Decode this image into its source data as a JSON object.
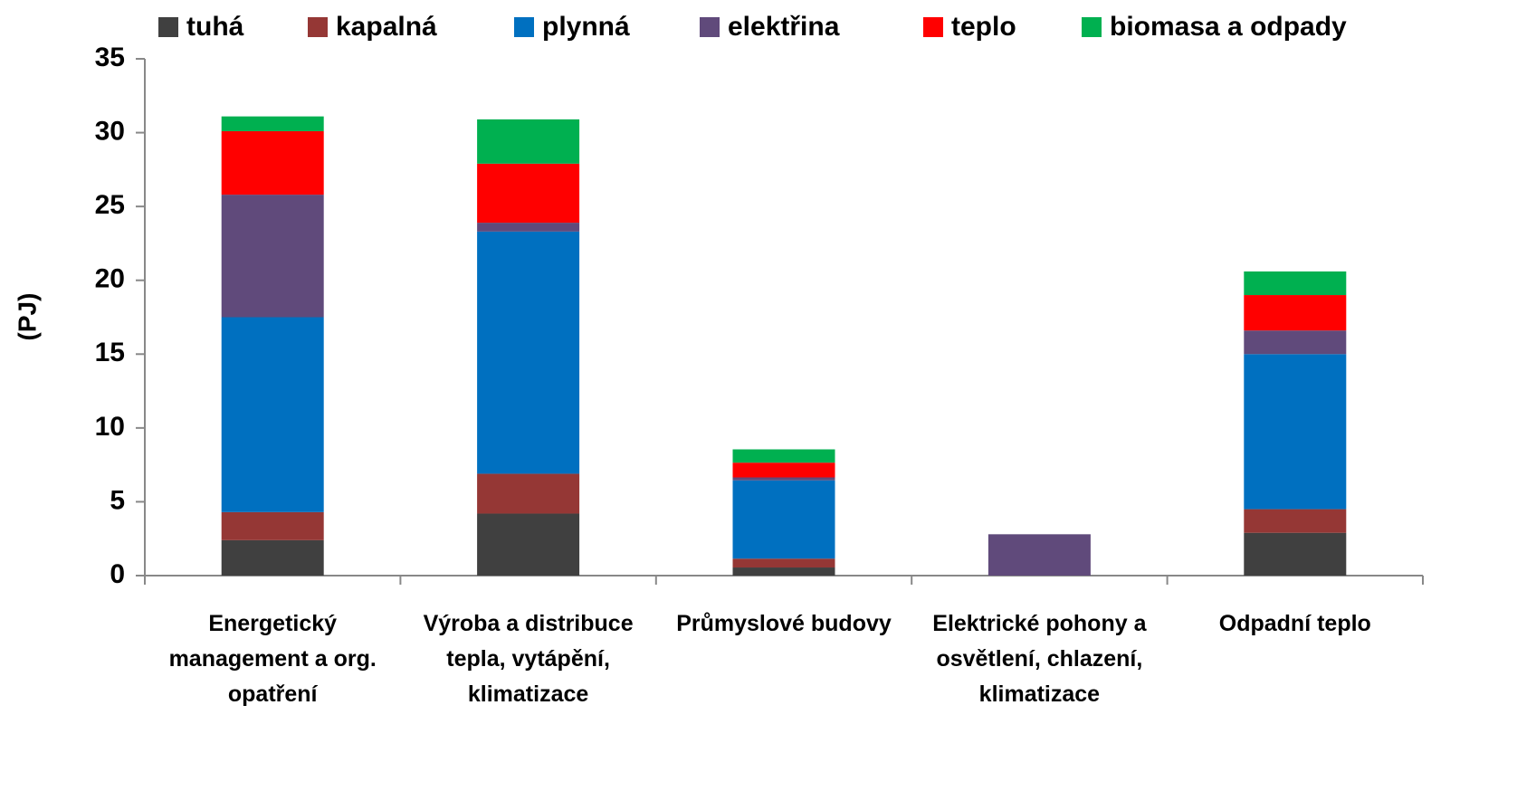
{
  "chart_data": {
    "type": "stacked_bar",
    "y_label": "(PJ)",
    "categories": [
      "Energetický management a org. opatření",
      "Výroba a distribuce tepla, vytápění, klimatizace",
      "Průmyslové budovy",
      "Elektrické pohony a osvětlení, chlazení, klimatizace",
      "Odpadní teplo"
    ],
    "series": [
      {
        "name": "tuhá",
        "color": "#404040",
        "values": [
          2.4,
          4.2,
          0.55,
          0,
          2.9
        ]
      },
      {
        "name": "kapalná",
        "color": "#953735",
        "values": [
          1.9,
          2.7,
          0.6,
          0,
          1.6
        ]
      },
      {
        "name": "plynná",
        "color": "#0070c0",
        "values": [
          13.2,
          16.4,
          5.3,
          0,
          10.5
        ]
      },
      {
        "name": "elektřina",
        "color": "#604a7b",
        "values": [
          8.3,
          0.6,
          0.2,
          2.8,
          1.6
        ]
      },
      {
        "name": "teplo",
        "color": "#ff0000",
        "values": [
          4.3,
          4.0,
          1.0,
          0,
          2.4
        ]
      },
      {
        "name": "biomasa a odpady",
        "color": "#00b050",
        "values": [
          1.0,
          3.0,
          0.9,
          0,
          1.6
        ]
      }
    ],
    "ylim": [
      0,
      35
    ],
    "yticks": [
      0,
      5,
      10,
      15,
      20,
      25,
      30,
      35
    ]
  }
}
